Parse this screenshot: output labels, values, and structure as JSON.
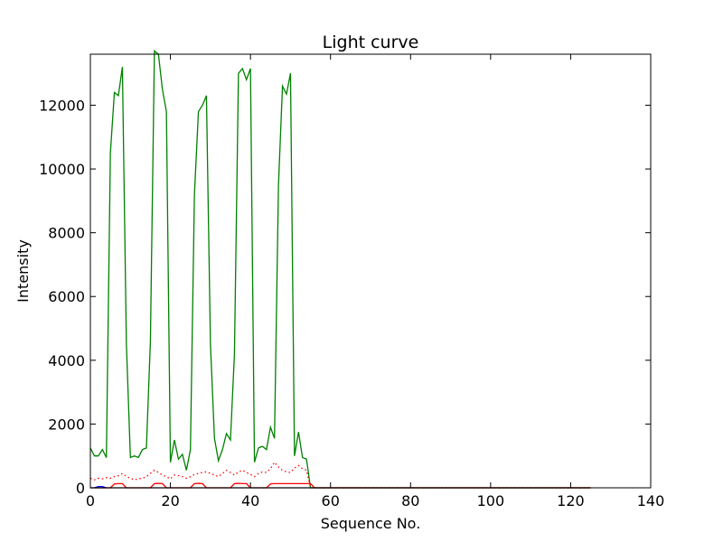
{
  "chart_data": {
    "type": "line",
    "title": "Light curve",
    "xlabel": "Sequence No.",
    "ylabel": "Intensity",
    "xlim": [
      0,
      140
    ],
    "ylim": [
      0,
      13600
    ],
    "grid": false,
    "xticks": [
      0,
      20,
      40,
      60,
      80,
      100,
      120,
      140
    ],
    "yticks": [
      0,
      2000,
      4000,
      6000,
      8000,
      10000,
      12000
    ],
    "colors": {
      "green": "#008000",
      "red": "#ff0000",
      "blue": "#0000ff",
      "black": "#000000"
    },
    "series": [
      {
        "color": "#008000",
        "style": "solid",
        "x": [
          0,
          1,
          2,
          3,
          4,
          5,
          6,
          7,
          8,
          9,
          10,
          11,
          12,
          13,
          14,
          15,
          16,
          17,
          18,
          19,
          20,
          21,
          22,
          23,
          24,
          25,
          26,
          27,
          28,
          29,
          30,
          31,
          32,
          33,
          34,
          35,
          36,
          37,
          38,
          39,
          40,
          41,
          42,
          43,
          44,
          45,
          46,
          47,
          48,
          49,
          50,
          51,
          52,
          53,
          54,
          55,
          56,
          57,
          125
        ],
        "y": [
          1250,
          1000,
          1000,
          1200,
          950,
          10500,
          12400,
          12300,
          13200,
          4500,
          950,
          1000,
          950,
          1200,
          1250,
          4600,
          13700,
          13600,
          12500,
          11800,
          800,
          1500,
          900,
          1050,
          550,
          1200,
          9200,
          11800,
          12000,
          12300,
          4500,
          1550,
          850,
          1200,
          1700,
          1500,
          4200,
          13000,
          13150,
          12800,
          13150,
          800,
          1250,
          1300,
          1200,
          1900,
          1550,
          9500,
          12600,
          12350,
          13000,
          1000,
          1750,
          950,
          900,
          0,
          0,
          0,
          0
        ]
      },
      {
        "color": "#ff0000",
        "style": "dotted",
        "x": [
          0,
          1,
          2,
          3,
          4,
          5,
          6,
          7,
          8,
          9,
          10,
          11,
          12,
          13,
          14,
          15,
          16,
          17,
          18,
          19,
          20,
          21,
          22,
          23,
          24,
          25,
          26,
          27,
          28,
          29,
          30,
          31,
          32,
          33,
          34,
          35,
          36,
          37,
          38,
          39,
          40,
          41,
          42,
          43,
          44,
          45,
          46,
          47,
          48,
          49,
          50,
          51,
          52,
          53,
          54,
          55,
          56,
          57,
          125
        ],
        "y": [
          300,
          250,
          300,
          280,
          320,
          300,
          350,
          380,
          450,
          350,
          300,
          250,
          280,
          300,
          350,
          450,
          550,
          480,
          400,
          350,
          280,
          400,
          380,
          350,
          300,
          350,
          420,
          450,
          480,
          500,
          450,
          400,
          350,
          450,
          550,
          480,
          400,
          500,
          550,
          480,
          420,
          350,
          450,
          500,
          480,
          600,
          800,
          650,
          550,
          500,
          480,
          620,
          700,
          600,
          550,
          0,
          0,
          0,
          0
        ]
      },
      {
        "color": "#ff0000",
        "style": "solid",
        "x": [
          0,
          5,
          6,
          7,
          8,
          9,
          15,
          16,
          17,
          18,
          19,
          25,
          26,
          27,
          28,
          29,
          35,
          36,
          37,
          38,
          39,
          40,
          44,
          45,
          46,
          47,
          48,
          49,
          50,
          51,
          52,
          53,
          54,
          55,
          56,
          125
        ],
        "y": [
          0,
          0,
          120,
          130,
          130,
          0,
          0,
          130,
          140,
          130,
          0,
          0,
          130,
          140,
          130,
          0,
          0,
          130,
          140,
          130,
          130,
          0,
          0,
          120,
          130,
          130,
          130,
          130,
          130,
          130,
          130,
          130,
          130,
          130,
          0,
          0
        ]
      },
      {
        "color": "#0000ff",
        "style": "solid",
        "x": [
          1,
          2,
          3,
          4
        ],
        "y": [
          0,
          40,
          40,
          0
        ]
      },
      {
        "color": "#000000",
        "style": "solid",
        "x": [
          0,
          125
        ],
        "y": [
          0,
          0
        ]
      }
    ]
  }
}
